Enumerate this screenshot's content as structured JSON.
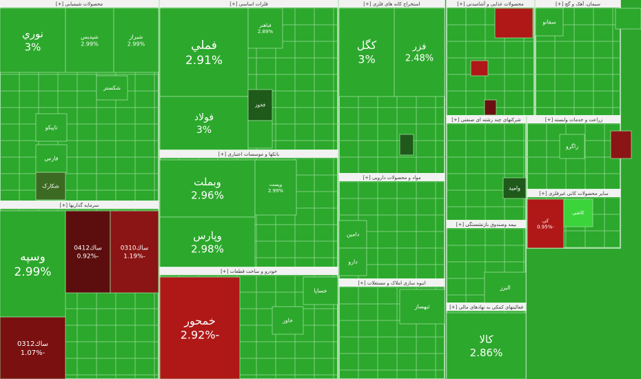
{
  "sectors": [
    {
      "title": "محصولات شیمیایی [+]",
      "tiles": [
        {
          "label": "نوري",
          "change": "3%"
        },
        {
          "label": "شپدیس",
          "change": "2.99%"
        },
        {
          "label": "شیراز",
          "change": "2.99%"
        },
        {
          "label": "شکارک"
        },
        {
          "label": "تاپیکو"
        },
        {
          "label": "فارس"
        },
        {
          "label": "شکستر"
        }
      ]
    },
    {
      "title": "سرمایه گذاریها [+]",
      "tiles": [
        {
          "label": "وسپه",
          "change": "2.99%"
        },
        {
          "label": "ساك0412",
          "change": "-0.92%"
        },
        {
          "label": "ساك0310",
          "change": "-1.19%"
        },
        {
          "label": "ساك0312",
          "change": "-1.07%"
        }
      ]
    },
    {
      "title": "فلزات اساسی [+]",
      "tiles": [
        {
          "label": "فملي",
          "change": "2.91%"
        },
        {
          "label": "فولاد",
          "change": "3%"
        },
        {
          "label": "فخوز"
        },
        {
          "label": "فباهنر",
          "change": "2.89%"
        }
      ]
    },
    {
      "title": "بانکها و موسسات اعتباری [+]",
      "tiles": [
        {
          "label": "وبملت",
          "change": "2.96%"
        },
        {
          "label": "وپارس",
          "change": "2.98%"
        },
        {
          "label": "وپست",
          "change": "2.99%"
        }
      ]
    },
    {
      "title": "خودرو و ساخت قطعات [+]",
      "tiles": [
        {
          "label": "خمحور",
          "change": "-2.92%"
        },
        {
          "label": "خساپا"
        },
        {
          "label": "خاور"
        }
      ]
    },
    {
      "title": "استخراج کانه های فلزی [+]",
      "tiles": [
        {
          "label": "کگل",
          "change": "3%"
        },
        {
          "label": "فزر",
          "change": "2.48%"
        }
      ]
    },
    {
      "title": "مواد و محصولات دارویی [+]",
      "tiles": [
        {
          "label": "دامین"
        },
        {
          "label": "دارو"
        }
      ]
    },
    {
      "title": "انبوه سازی املاک و مستغلات [+]",
      "tiles": [
        {
          "label": "ثبهساز"
        }
      ]
    },
    {
      "title": "محصولات غذایی و آشامیدنی [+]",
      "tiles": []
    },
    {
      "title": "سیمان، آهک و گچ [+]",
      "tiles": [
        {
          "label": "سفانو"
        }
      ]
    },
    {
      "title": "شرکتهای چند رشته ای صنعتی [+]",
      "tiles": [
        {
          "label": "وامید"
        }
      ]
    },
    {
      "title": "بیمه وصندوق بازنشستگی [+]",
      "tiles": [
        {
          "label": "البرز"
        }
      ]
    },
    {
      "title": "فعالیتهای کمکی به نهادهای مالی [+]",
      "tiles": [
        {
          "label": "کالا",
          "change": "2.86%"
        }
      ]
    },
    {
      "title": "زراعت و خدمات وابسته [+]",
      "tiles": [
        {
          "label": "زاگرو"
        }
      ]
    },
    {
      "title": "سایر محصولات کانی غیرفلزی [+]",
      "tiles": [
        {
          "label": "کی",
          "change": "-0.95%"
        },
        {
          "label": "کاشی"
        }
      ]
    }
  ]
}
